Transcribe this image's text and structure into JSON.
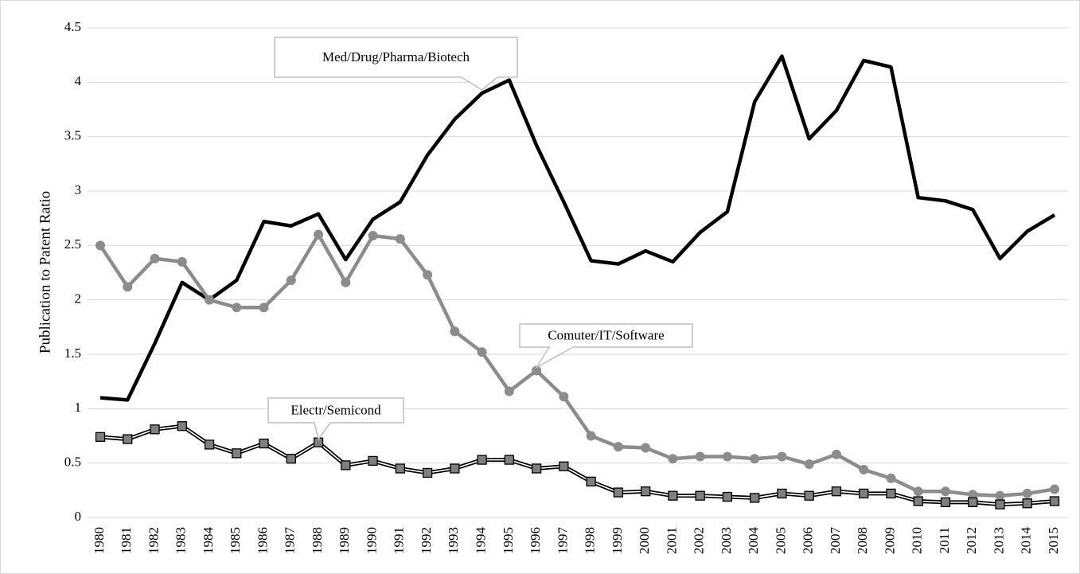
{
  "chart_data": {
    "type": "line",
    "y_label": "Publication to Patent Ratio",
    "categories": [
      "1980",
      "1981",
      "1982",
      "1983",
      "1984",
      "1985",
      "1986",
      "1987",
      "1988",
      "1989",
      "1990",
      "1991",
      "1992",
      "1993",
      "1994",
      "1995",
      "1996",
      "1997",
      "1998",
      "1999",
      "2000",
      "2001",
      "2002",
      "2003",
      "2004",
      "2005",
      "2006",
      "2007",
      "2008",
      "2009",
      "2010",
      "2011",
      "2012",
      "2013",
      "2014",
      "2015"
    ],
    "series": [
      {
        "name": "Med/Drug/Pharma/Biotech",
        "color": "#000000",
        "values": [
          1.1,
          1.08,
          1.6,
          2.16,
          2.0,
          2.18,
          2.72,
          2.68,
          2.79,
          2.37,
          2.74,
          2.9,
          3.33,
          3.66,
          3.9,
          4.02,
          3.42,
          2.9,
          2.36,
          2.33,
          2.45,
          2.35,
          2.62,
          2.81,
          3.82,
          4.24,
          3.48,
          3.74,
          4.2,
          4.14,
          2.94,
          2.91,
          2.83,
          2.38,
          2.63,
          2.78
        ]
      },
      {
        "name": "Comuter/IT/Software",
        "color": "#8c8c8c",
        "values": [
          2.5,
          2.12,
          2.38,
          2.35,
          2.0,
          1.93,
          1.93,
          2.18,
          2.6,
          2.16,
          2.59,
          2.56,
          2.23,
          1.71,
          1.52,
          1.16,
          1.35,
          1.11,
          0.75,
          0.65,
          0.64,
          0.54,
          0.56,
          0.56,
          0.54,
          0.56,
          0.49,
          0.58,
          0.44,
          0.36,
          0.24,
          0.24,
          0.21,
          0.2,
          0.22,
          0.26
        ]
      },
      {
        "name": "Electr/Semicond",
        "color": "#7f7f7f",
        "values": [
          0.74,
          0.72,
          0.81,
          0.84,
          0.67,
          0.59,
          0.68,
          0.54,
          0.69,
          0.48,
          0.52,
          0.45,
          0.41,
          0.45,
          0.53,
          0.53,
          0.45,
          0.47,
          0.33,
          0.23,
          0.24,
          0.2,
          0.2,
          0.19,
          0.18,
          0.22,
          0.2,
          0.24,
          0.22,
          0.22,
          0.15,
          0.14,
          0.14,
          0.12,
          0.13,
          0.15
        ]
      }
    ],
    "ylim": [
      0,
      4.5
    ],
    "yticks": [
      0,
      0.5,
      1,
      1.5,
      2,
      2.5,
      3,
      3.5,
      4,
      4.5
    ],
    "grid": true
  }
}
